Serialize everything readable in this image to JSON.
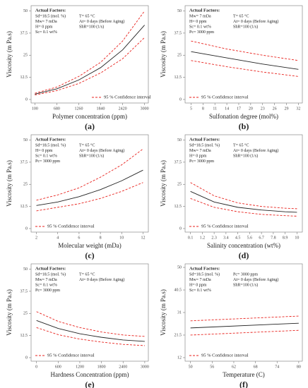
{
  "chart_data": [
    {
      "type": "line",
      "label": "(a)",
      "x_label": "Polymer concentration (ppm)",
      "y_label": "Viscosity (m Pa.s)",
      "x": [
        100,
        680,
        1260,
        1840,
        2420,
        3000
      ],
      "xlim": [
        0,
        3100
      ],
      "xticks": [
        100,
        680,
        1260,
        1840,
        2420,
        3000
      ],
      "ylim": [
        -2,
        53
      ],
      "yticks": [
        0,
        12.5,
        25,
        37.5,
        50
      ],
      "series": [
        {
          "color": "#222222",
          "values": [
            3,
            6,
            11,
            18,
            28,
            42
          ]
        },
        {
          "name": "95 % Confidence interval",
          "color": "#e8211c",
          "dashed": true,
          "values": [
            3.5,
            7,
            13,
            21,
            33,
            50
          ]
        },
        {
          "color": "#e8211c",
          "dashed": true,
          "values": [
            2.5,
            5,
            9,
            15,
            23,
            35
          ]
        }
      ],
      "factors_title": "Actual Factors:",
      "factors": [
        [
          "Sd=18.5 (mol. %)",
          "Mw= 7 mDa",
          "H= 0 ppm",
          "Sc= 0.1 wt%"
        ],
        [
          "T= 65 °C",
          "At= 0 days (Before Aging)",
          "ShR=100 (1/s)"
        ]
      ],
      "legend": "lower right"
    },
    {
      "type": "line",
      "label": "(b)",
      "x_label": "Sulfonation degree (mol%)",
      "y_label": "Viscosity (m Pa.s)",
      "x": [
        5,
        14,
        23,
        32
      ],
      "xlim": [
        3.5,
        33
      ],
      "xticks": [
        5,
        8,
        11,
        14,
        17,
        20,
        23,
        26,
        29,
        32
      ],
      "ylim": [
        -2,
        53
      ],
      "yticks": [
        0,
        12.5,
        25,
        37.5,
        50
      ],
      "series": [
        {
          "color": "#222222",
          "values": [
            27,
            23.5,
            20,
            17
          ]
        },
        {
          "name": "95 % Confidence interval",
          "color": "#e8211c",
          "dashed": true,
          "values": [
            33,
            28.5,
            25,
            22
          ]
        },
        {
          "color": "#e8211c",
          "dashed": true,
          "values": [
            22,
            18.5,
            15.5,
            13
          ]
        }
      ],
      "factors_title": "Actual Factors:",
      "factors": [
        [
          "Mw= 7 mDa",
          "H= 0 ppm",
          "Sc= 0.1 wt%",
          "Pc= 3000 ppm"
        ],
        [
          "T= 65 °C",
          "At= 0 days (Before Aging)",
          "ShR=100 (1/s)"
        ]
      ],
      "legend": "lower left"
    },
    {
      "type": "line",
      "label": "(c)",
      "x_label": "Molecular weight (mDa)",
      "y_label": "Viscosity (m Pa.s)",
      "x": [
        2,
        4,
        6,
        8,
        10,
        12
      ],
      "xlim": [
        1.5,
        12.5
      ],
      "xticks": [
        2,
        4,
        6,
        8,
        10,
        12
      ],
      "ylim": [
        -2,
        53
      ],
      "yticks": [
        0,
        12.5,
        25,
        37.5,
        50
      ],
      "series": [
        {
          "color": "#222222",
          "values": [
            13,
            15,
            18,
            22,
            27,
            33
          ]
        },
        {
          "name": "95 % Confidence interval",
          "color": "#e8211c",
          "dashed": true,
          "values": [
            16,
            19,
            23,
            29,
            36,
            45
          ]
        },
        {
          "color": "#e8211c",
          "dashed": true,
          "values": [
            10,
            12,
            14,
            17,
            21,
            26
          ]
        }
      ],
      "factors_title": "Actual Factors:",
      "factors": [
        [
          "Sd=18.5 (mol. %)",
          "H= 0 ppm",
          "Sc= 0.1 wt%",
          "Pc= 3000 ppm"
        ],
        [
          "T= 65 °C",
          "At= 0 days (Before Aging)",
          "ShR=100 (1/s)"
        ]
      ],
      "legend": "lower left"
    },
    {
      "type": "line",
      "label": "(d)",
      "x_label": "Salinity concentration (wt%)",
      "y_label": "Viscosity (m Pa.s)",
      "x": [
        0.1,
        2.3,
        4.5,
        6.7,
        8.9,
        10
      ],
      "xlim": [
        -0.4,
        10.5
      ],
      "xticks": [
        0.1,
        1.2,
        2.3,
        3.4,
        4.5,
        5.6,
        6.7,
        7.8,
        8.9,
        10
      ],
      "ylim": [
        -2,
        53
      ],
      "yticks": [
        0,
        12.5,
        25,
        37.5,
        50
      ],
      "series": [
        {
          "color": "#222222",
          "values": [
            21,
            15,
            12,
            10.5,
            9.5,
            9.2
          ]
        },
        {
          "name": "95 % Confidence interval",
          "color": "#e8211c",
          "dashed": true,
          "values": [
            26,
            18.5,
            14.5,
            12.5,
            11.5,
            11.2
          ]
        },
        {
          "color": "#e8211c",
          "dashed": true,
          "values": [
            17,
            12,
            9.5,
            8,
            7.3,
            7
          ]
        }
      ],
      "factors_title": "Actual Factors:",
      "factors": [
        [
          "Sd=18.5 (mol. %)",
          "Mw= 7 mDa",
          "H= 0 ppm",
          "Pc= 3000 ppm"
        ],
        [
          "T= 65 °C",
          "At= 0 days (Before Aging)",
          "ShR=100 (1/s)"
        ]
      ],
      "legend": "lower left"
    },
    {
      "type": "line",
      "label": "(e)",
      "x_label": "Hardness Concentration (ppm)",
      "y_label": "Viscosity (m Pa.s)",
      "x": [
        0,
        600,
        1200,
        1800,
        2400,
        3000
      ],
      "xlim": [
        -150,
        3100
      ],
      "xticks": [
        0,
        600,
        1200,
        1800,
        2400,
        3000
      ],
      "ylim": [
        -2,
        53
      ],
      "yticks": [
        0,
        12.5,
        25,
        37.5,
        50
      ],
      "series": [
        {
          "color": "#222222",
          "values": [
            21,
            16.5,
            13.5,
            11.5,
            10,
            9.2
          ]
        },
        {
          "name": "95 % Confidence interval",
          "color": "#e8211c",
          "dashed": true,
          "values": [
            26,
            20.5,
            17,
            14.5,
            12.8,
            12
          ]
        },
        {
          "color": "#e8211c",
          "dashed": true,
          "values": [
            17,
            13,
            10.5,
            8.8,
            7.5,
            6.8
          ]
        }
      ],
      "factors_title": "Actual Factors:",
      "factors": [
        [
          "Sd=18.5 (mol. %)",
          "Mw= 7 mDa",
          "Sc= 0.1 wt%",
          "Pc= 3000 ppm"
        ],
        [
          "T= 65 °C",
          "At= 0 days (Before Aging)"
        ]
      ],
      "legend": "lower left"
    },
    {
      "type": "line",
      "label": "(f)",
      "x_label": "Temperature (C)",
      "y_label": "Viscosity (m Pa.s)",
      "x": [
        50,
        80
      ],
      "xlim": [
        48.5,
        81
      ],
      "xticks": [
        50,
        56,
        62,
        68,
        74,
        80
      ],
      "ylim": [
        10.5,
        51.5
      ],
      "yticks": [
        12,
        21.5,
        31,
        40.5,
        50
      ],
      "series": [
        {
          "color": "#222222",
          "values": [
            24.5,
            26.5
          ]
        },
        {
          "name": "95 % Confidence interval",
          "color": "#e8211c",
          "dashed": true,
          "values": [
            27.5,
            29.5
          ]
        },
        {
          "color": "#e8211c",
          "dashed": true,
          "values": [
            21.5,
            23.5
          ]
        }
      ],
      "factors_title": "Actual Factors:",
      "factors": [
        [
          "Sd=18.5 (mol. %)",
          "Mw= 7 mDa",
          "H= 0 ppm",
          "Sc= 0.1 wt%"
        ],
        [
          "Pc= 3000 ppm",
          "At= 0 days (Before Aging)",
          "ShR=100 (1/s)"
        ]
      ],
      "legend": "lower left"
    }
  ]
}
